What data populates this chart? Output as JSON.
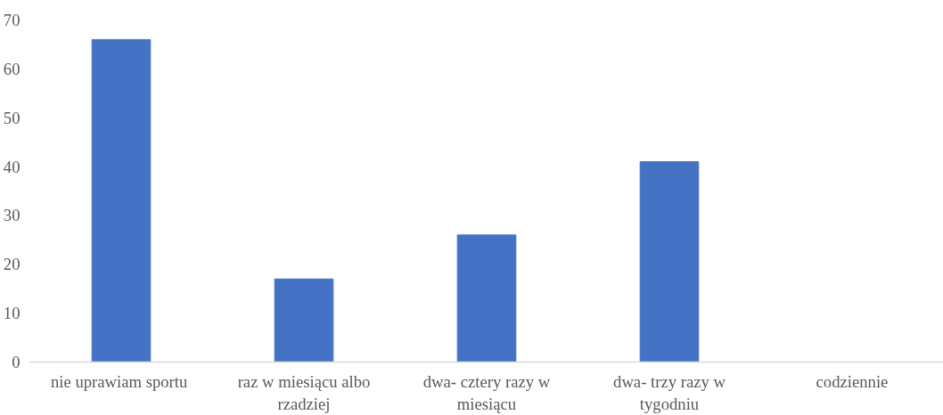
{
  "chart_data": {
    "type": "bar",
    "categories": [
      "nie  uprawiam sportu",
      "raz w miesiącu albo rzadziej",
      "dwa- cztery razy w miesiącu",
      "dwa- trzy razy w tygodniu",
      "codziennie"
    ],
    "values": [
      66,
      17,
      26,
      41,
      0
    ],
    "color": "#4472c4",
    "ylim": [
      0,
      70
    ],
    "yticks": [
      0,
      10,
      20,
      30,
      40,
      50,
      60,
      70
    ],
    "grid": false
  }
}
